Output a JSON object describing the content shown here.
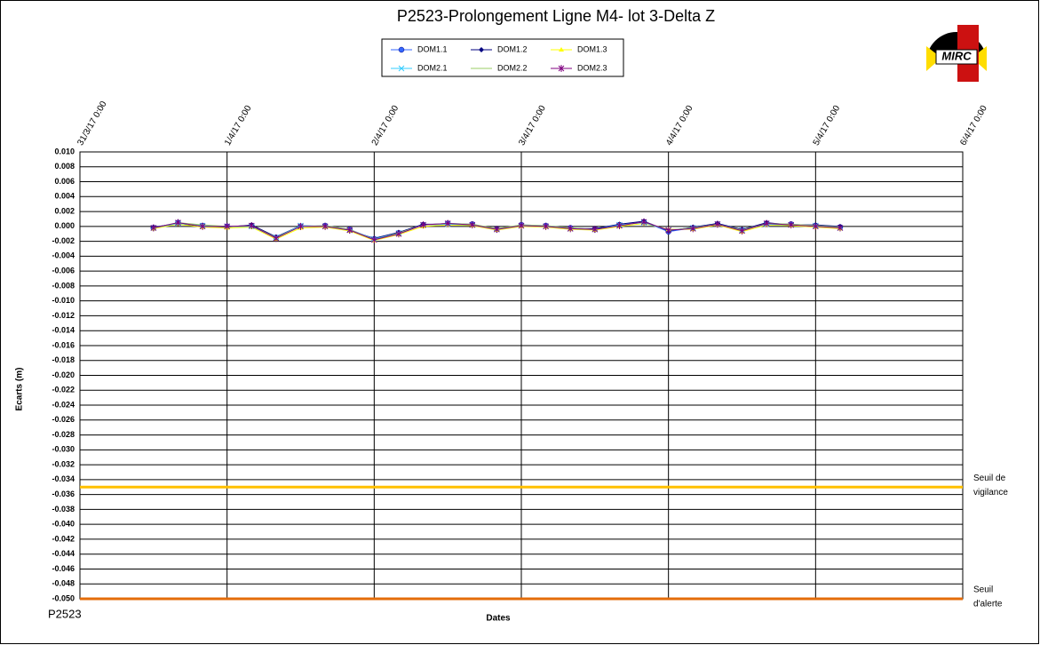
{
  "chart_data": {
    "type": "line",
    "title": "P2523-Prolongement  Ligne  M4- lot 3-Delta Z",
    "footer": "P2523",
    "logo_text": "MIRC",
    "x_label": "Dates",
    "y_label": "Ecarts (m)",
    "x": [
      "31/3/17 12:00",
      "31/3/17 16:00",
      "31/3/17 20:00",
      "1/4/17 0:00",
      "1/4/17 4:00",
      "1/4/17 8:00",
      "1/4/17 12:00",
      "1/4/17 16:00",
      "1/4/17 20:00",
      "2/4/17 0:00",
      "2/4/17 4:00",
      "2/4/17 8:00",
      "2/4/17 12:00",
      "2/4/17 16:00",
      "2/4/17 20:00",
      "3/4/17 0:00",
      "3/4/17 4:00",
      "3/4/17 8:00",
      "3/4/17 12:00",
      "3/4/17 16:00",
      "3/4/17 20:00",
      "4/4/17 0:00",
      "4/4/17 4:00",
      "4/4/17 8:00",
      "4/4/17 12:00",
      "4/4/17 16:00",
      "4/4/17 20:00",
      "5/4/17 0:00",
      "5/4/17 4:00"
    ],
    "series": [
      {
        "name": "DOM1.1",
        "color": "#3366ff",
        "marker": "circle",
        "values": [
          -0.0002,
          0.0005,
          0.0001,
          0.0,
          0.0001,
          -0.0015,
          0.0,
          0.0001,
          -0.0004,
          -0.0017,
          -0.0009,
          0.0002,
          0.0004,
          0.0003,
          -0.0004,
          0.0002,
          0.0001,
          -0.0002,
          -0.0004,
          0.0002,
          0.0006,
          -0.0007,
          -0.0002,
          0.0003,
          -0.0005,
          0.0004,
          0.0003,
          0.0001,
          -0.0001
        ]
      },
      {
        "name": "DOM1.2",
        "color": "#000080",
        "marker": "diamond",
        "values": [
          -0.0001,
          0.0004,
          0.0,
          -0.0001,
          0.0002,
          -0.0014,
          0.0001,
          0.0,
          -0.0006,
          -0.0016,
          -0.0008,
          0.0003,
          0.0003,
          0.0002,
          -0.0003,
          0.0001,
          0.0,
          -0.0003,
          -0.0003,
          0.0003,
          0.0007,
          -0.0006,
          -0.0001,
          0.0004,
          -0.0004,
          0.0005,
          0.0002,
          0.0002,
          0.0
        ]
      },
      {
        "name": "DOM1.3",
        "color": "#ffff00",
        "marker": "triangle",
        "values": [
          -0.0003,
          0.0003,
          -0.0001,
          -0.0002,
          -0.0001,
          -0.0017,
          -0.0002,
          -0.0001,
          -0.0006,
          -0.0019,
          -0.0011,
          0.0,
          0.0002,
          0.0001,
          -0.0005,
          0.0,
          -0.0001,
          -0.0004,
          -0.0005,
          0.0,
          0.0004,
          -0.0004,
          -0.0004,
          0.0002,
          -0.0007,
          0.0002,
          0.0001,
          -0.0001,
          -0.0003
        ]
      },
      {
        "name": "DOM2.1",
        "color": "#33ccff",
        "marker": "x",
        "values": [
          -0.0002,
          0.0004,
          0.0001,
          0.0,
          0.0,
          -0.0015,
          0.0001,
          0.0,
          -0.0005,
          -0.0017,
          -0.0009,
          0.0002,
          0.0003,
          0.0002,
          -0.0004,
          0.0001,
          0.0,
          -0.0003,
          -0.0004,
          0.0002,
          0.0005,
          -0.0005,
          -0.0002,
          0.0003,
          -0.0005,
          0.0003,
          0.0002,
          0.0001,
          -0.0002
        ]
      },
      {
        "name": "DOM2.2",
        "color": "#99cc66",
        "marker": "none",
        "values": [
          -0.0002,
          0.0005,
          0.0002,
          0.0,
          0.0001,
          -0.0015,
          0.0,
          0.0001,
          -0.0004,
          -0.0018,
          -0.0009,
          0.0002,
          0.0004,
          0.0003,
          -0.0003,
          0.0002,
          0.0001,
          -0.0002,
          -0.0004,
          0.0001,
          0.0006,
          -0.0005,
          -0.0002,
          0.0003,
          -0.0005,
          0.0004,
          0.0003,
          0.0001,
          -0.0001
        ]
      },
      {
        "name": "DOM2.3",
        "color": "#800080",
        "marker": "star",
        "values": [
          -0.0002,
          0.0005,
          0.0,
          0.0,
          0.0001,
          -0.0016,
          0.0,
          0.0,
          -0.0005,
          -0.0018,
          -0.001,
          0.0002,
          0.0004,
          0.0002,
          -0.0004,
          0.0001,
          0.0,
          -0.0003,
          -0.0004,
          0.0001,
          0.0006,
          -0.0005,
          -0.0003,
          0.0003,
          -0.0006,
          0.0004,
          0.0002,
          0.0,
          -0.0002
        ]
      }
    ],
    "thresholds": [
      {
        "value": -0.035,
        "color": "#ffc000",
        "label_lines": [
          "Seuil de",
          "vigilance"
        ]
      },
      {
        "value": -0.05,
        "color": "#e46c0a",
        "label_lines": [
          "Seuil",
          "d'alerte"
        ]
      }
    ],
    "xlim": [
      "31/3/17 0:00",
      "6/4/17 0:00"
    ],
    "xticks": [
      "31/3/17 0:00",
      "1/4/17 0:00",
      "2/4/17 0:00",
      "3/4/17 0:00",
      "4/4/17 0:00",
      "5/4/17 0:00",
      "6/4/17 0:00"
    ],
    "ylim": [
      -0.05,
      0.01
    ],
    "yticks": [
      {
        "value": 0.01,
        "label": "0.010"
      },
      {
        "value": 0.008,
        "label": "0.008"
      },
      {
        "value": 0.006,
        "label": "0.006"
      },
      {
        "value": 0.004,
        "label": "0.004"
      },
      {
        "value": 0.002,
        "label": "0.002"
      },
      {
        "value": 0,
        "label": "0.000"
      },
      {
        "value": -0.002,
        "label": "-0.002"
      },
      {
        "value": -0.004,
        "label": "-0.004"
      },
      {
        "value": -0.006,
        "label": "-0.006"
      },
      {
        "value": -0.008,
        "label": "-0.008"
      },
      {
        "value": -0.01,
        "label": "-0.010"
      },
      {
        "value": -0.012,
        "label": "-0.012"
      },
      {
        "value": -0.014,
        "label": "-0.014"
      },
      {
        "value": -0.016,
        "label": "-0.016"
      },
      {
        "value": -0.018,
        "label": "-0.018"
      },
      {
        "value": -0.02,
        "label": "-0.020"
      },
      {
        "value": -0.022,
        "label": "-0.022"
      },
      {
        "value": -0.024,
        "label": "-0.024"
      },
      {
        "value": -0.026,
        "label": "-0.026"
      },
      {
        "value": -0.028,
        "label": "-0.028"
      },
      {
        "value": -0.03,
        "label": "-0.030"
      },
      {
        "value": -0.032,
        "label": "-0.032"
      },
      {
        "value": -0.034,
        "label": "-0.034"
      },
      {
        "value": -0.036,
        "label": "-0.036"
      },
      {
        "value": -0.038,
        "label": "-0.038"
      },
      {
        "value": -0.04,
        "label": "-0.040"
      },
      {
        "value": -0.042,
        "label": "-0.042"
      },
      {
        "value": -0.044,
        "label": "-0.044"
      },
      {
        "value": -0.046,
        "label": "-0.046"
      },
      {
        "value": -0.048,
        "label": "-0.048"
      },
      {
        "value": -0.05,
        "label": "-0.050"
      }
    ],
    "grid": true
  }
}
